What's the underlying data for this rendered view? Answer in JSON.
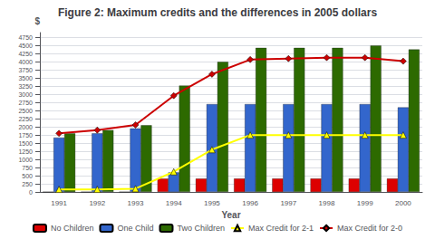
{
  "chart_data": {
    "type": "bar",
    "title": "Figure 2: Maximum credits and the differences in 2005 dollars",
    "xlabel": "Year",
    "ylabel": "$",
    "categories": [
      "1991",
      "1992",
      "1993",
      "1994",
      "1995",
      "1996",
      "1997",
      "1998",
      "1999",
      "2000"
    ],
    "series": [
      {
        "name": "No Children",
        "type": "bar",
        "color": "#dd0000",
        "values": [
          0,
          0,
          0,
          410,
          410,
          410,
          410,
          410,
          410,
          410
        ]
      },
      {
        "name": "One Child",
        "type": "bar",
        "color": "#3366cc",
        "values": [
          1670,
          1800,
          1950,
          600,
          2700,
          2700,
          2700,
          2700,
          2700,
          2600
        ]
      },
      {
        "name": "Two Children",
        "type": "bar",
        "color": "#2d6a00",
        "values": [
          1800,
          1900,
          2050,
          3270,
          4000,
          4430,
          4430,
          4430,
          4500,
          4380
        ]
      },
      {
        "name": "Max Credit for 2-1",
        "type": "line",
        "marker": "triangle",
        "color": "#ffff00",
        "values": [
          80,
          80,
          100,
          620,
          1300,
          1750,
          1750,
          1750,
          1750,
          1750
        ]
      },
      {
        "name": "Max Credit for 2-0",
        "type": "line",
        "marker": "diamond",
        "color": "#cc0000",
        "values": [
          1800,
          1900,
          2060,
          2960,
          3620,
          4070,
          4100,
          4130,
          4130,
          4020
        ]
      }
    ],
    "ylim": [
      0,
      4900
    ],
    "yticks": [
      0,
      250,
      500,
      750,
      1000,
      1250,
      1500,
      1750,
      2000,
      2250,
      2500,
      2750,
      3000,
      3250,
      3500,
      3750,
      4000,
      4250,
      4500,
      4750
    ],
    "grid": true,
    "legend": "bottom"
  }
}
